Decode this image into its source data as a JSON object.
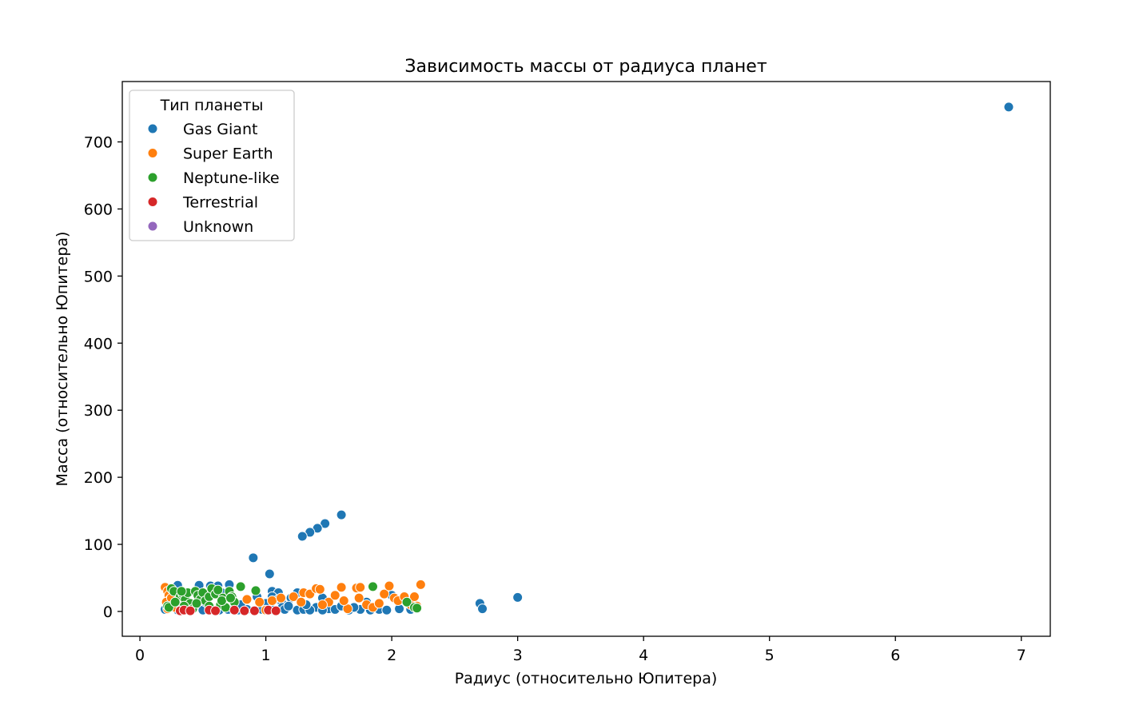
{
  "chart_data": {
    "type": "scatter",
    "title": "Зависимость массы от радиуса планет",
    "xlabel": "Радиус (относительно Юпитера)",
    "ylabel": "Масса (относительно Юпитера)",
    "xlim": [
      -0.14,
      7.23
    ],
    "ylim": [
      -37,
      790
    ],
    "xticks": [
      0,
      1,
      2,
      3,
      4,
      5,
      6,
      7
    ],
    "yticks": [
      0,
      100,
      200,
      300,
      400,
      500,
      600,
      700
    ],
    "grid": false,
    "legend": {
      "title": "Тип планеты",
      "placement": "top-left",
      "entries": [
        "Gas Giant",
        "Super Earth",
        "Neptune-like",
        "Terrestrial",
        "Unknown"
      ]
    },
    "series": [
      {
        "name": "Gas Giant",
        "color": "#1f77b4",
        "points": [
          [
            6.9,
            752
          ],
          [
            3.0,
            21
          ],
          [
            2.7,
            12
          ],
          [
            2.72,
            4
          ],
          [
            1.6,
            144
          ],
          [
            1.47,
            131
          ],
          [
            1.41,
            124
          ],
          [
            1.35,
            118
          ],
          [
            1.29,
            112
          ],
          [
            0.9,
            80
          ],
          [
            1.03,
            56
          ],
          [
            0.3,
            39
          ],
          [
            0.47,
            39
          ],
          [
            0.56,
            38
          ],
          [
            0.62,
            38
          ],
          [
            0.71,
            40
          ],
          [
            1.05,
            30
          ],
          [
            1.1,
            28
          ],
          [
            1.25,
            28
          ],
          [
            1.45,
            20
          ],
          [
            0.93,
            22
          ],
          [
            1.2,
            20
          ],
          [
            1.05,
            22
          ],
          [
            1.1,
            18
          ],
          [
            1.13,
            12
          ],
          [
            1.13,
            6
          ],
          [
            1.4,
            6
          ],
          [
            1.5,
            4
          ],
          [
            1.8,
            14
          ],
          [
            2.0,
            24
          ],
          [
            2.06,
            4
          ],
          [
            0.2,
            3
          ],
          [
            0.3,
            2
          ],
          [
            0.4,
            3
          ],
          [
            0.5,
            2
          ],
          [
            0.6,
            2
          ],
          [
            0.63,
            2
          ],
          [
            0.7,
            3
          ],
          [
            0.78,
            2
          ],
          [
            0.85,
            3
          ],
          [
            0.97,
            3
          ],
          [
            1.06,
            2
          ],
          [
            1.15,
            3
          ],
          [
            1.25,
            2
          ],
          [
            1.3,
            3
          ],
          [
            1.35,
            2
          ],
          [
            1.45,
            2
          ],
          [
            1.55,
            3
          ],
          [
            1.66,
            2
          ],
          [
            1.75,
            3
          ],
          [
            1.83,
            2
          ],
          [
            1.9,
            3
          ],
          [
            1.96,
            2
          ],
          [
            2.15,
            3
          ],
          [
            2.2,
            4
          ],
          [
            0.25,
            12
          ],
          [
            0.35,
            20
          ],
          [
            0.45,
            26
          ],
          [
            0.52,
            14
          ],
          [
            0.65,
            28
          ],
          [
            0.8,
            10
          ],
          [
            1.0,
            12
          ],
          [
            1.18,
            8
          ],
          [
            1.32,
            10
          ],
          [
            1.6,
            8
          ],
          [
            1.7,
            6
          ]
        ]
      },
      {
        "name": "Super Earth",
        "color": "#ff7f0e",
        "points": [
          [
            0.2,
            36
          ],
          [
            0.22,
            30
          ],
          [
            0.23,
            24
          ],
          [
            0.24,
            18
          ],
          [
            0.21,
            14
          ],
          [
            0.26,
            10
          ],
          [
            0.28,
            6
          ],
          [
            0.22,
            4
          ],
          [
            0.25,
            20
          ],
          [
            0.3,
            16
          ],
          [
            0.85,
            18
          ],
          [
            0.95,
            14
          ],
          [
            1.0,
            2
          ],
          [
            1.05,
            16
          ],
          [
            1.12,
            20
          ],
          [
            1.22,
            22
          ],
          [
            1.3,
            28
          ],
          [
            1.35,
            26
          ],
          [
            1.4,
            34
          ],
          [
            1.43,
            33
          ],
          [
            1.5,
            14
          ],
          [
            1.55,
            24
          ],
          [
            1.6,
            36
          ],
          [
            1.65,
            4
          ],
          [
            1.72,
            35
          ],
          [
            1.75,
            36
          ],
          [
            1.74,
            20
          ],
          [
            1.8,
            10
          ],
          [
            1.85,
            6
          ],
          [
            1.9,
            12
          ],
          [
            1.94,
            26
          ],
          [
            1.98,
            38
          ],
          [
            2.02,
            20
          ],
          [
            2.05,
            16
          ],
          [
            2.1,
            22
          ],
          [
            2.15,
            10
          ],
          [
            2.18,
            22
          ],
          [
            2.2,
            8
          ],
          [
            2.23,
            40
          ],
          [
            1.28,
            14
          ],
          [
            1.45,
            10
          ],
          [
            1.62,
            16
          ]
        ]
      },
      {
        "name": "Neptune-like",
        "color": "#2ca02c",
        "points": [
          [
            0.22,
            8
          ],
          [
            0.23,
            6
          ],
          [
            0.25,
            34
          ],
          [
            0.27,
            30
          ],
          [
            0.3,
            14
          ],
          [
            0.32,
            22
          ],
          [
            0.34,
            26
          ],
          [
            0.36,
            18
          ],
          [
            0.38,
            28
          ],
          [
            0.4,
            12
          ],
          [
            0.42,
            4
          ],
          [
            0.44,
            30
          ],
          [
            0.46,
            24
          ],
          [
            0.48,
            18
          ],
          [
            0.5,
            28
          ],
          [
            0.52,
            16
          ],
          [
            0.55,
            22
          ],
          [
            0.57,
            34
          ],
          [
            0.6,
            26
          ],
          [
            0.62,
            32
          ],
          [
            0.64,
            10
          ],
          [
            0.66,
            20
          ],
          [
            0.68,
            6
          ],
          [
            0.71,
            30
          ],
          [
            0.73,
            22
          ],
          [
            0.75,
            14
          ],
          [
            0.8,
            37
          ],
          [
            0.92,
            31
          ],
          [
            1.85,
            37
          ],
          [
            2.12,
            14
          ],
          [
            2.18,
            6
          ],
          [
            2.2,
            5
          ],
          [
            0.35,
            8
          ],
          [
            0.45,
            12
          ],
          [
            0.55,
            8
          ],
          [
            0.65,
            16
          ],
          [
            0.72,
            20
          ],
          [
            0.28,
            14
          ],
          [
            0.33,
            30
          ]
        ]
      },
      {
        "name": "Terrestrial",
        "color": "#d62728",
        "points": [
          [
            0.32,
            1
          ],
          [
            0.35,
            2
          ],
          [
            0.4,
            1
          ],
          [
            0.55,
            2
          ],
          [
            0.6,
            1
          ],
          [
            0.75,
            2
          ],
          [
            0.83,
            1
          ],
          [
            0.91,
            1
          ],
          [
            1.02,
            2
          ],
          [
            1.08,
            1
          ]
        ]
      },
      {
        "name": "Unknown",
        "color": "#9467bd",
        "points": []
      }
    ]
  }
}
